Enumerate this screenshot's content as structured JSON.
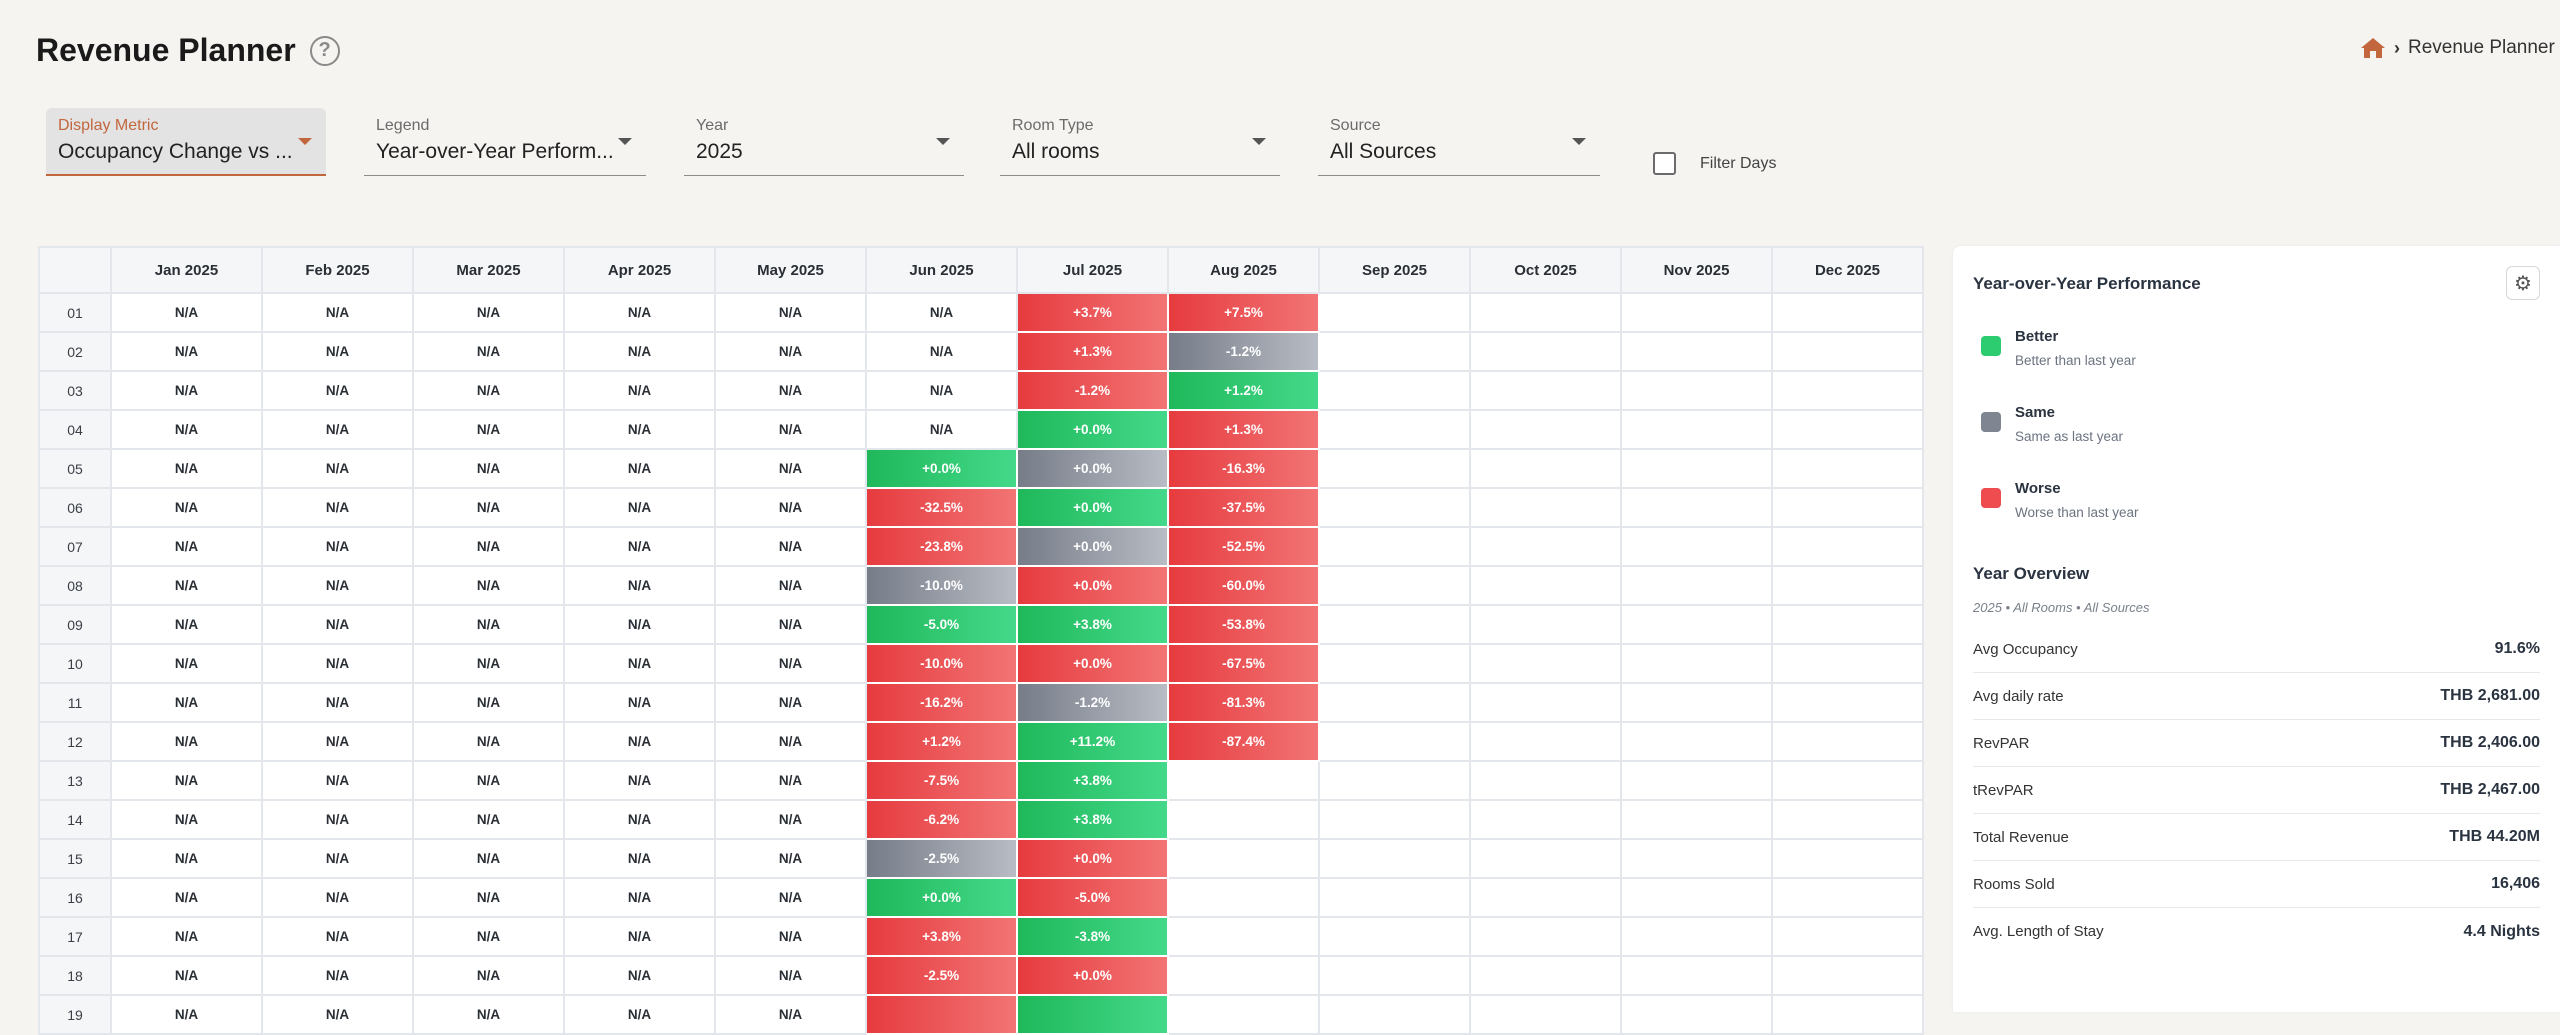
{
  "page": {
    "title": "Revenue Planner",
    "help_glyph": "?"
  },
  "breadcrumb": {
    "separator": "›",
    "current": "Revenue Planner"
  },
  "filters": {
    "display_metric": {
      "label": "Display Metric",
      "value": "Occupancy Change vs ..."
    },
    "legend": {
      "label": "Legend",
      "value": "Year-over-Year Perform..."
    },
    "year": {
      "label": "Year",
      "value": "2025"
    },
    "room_type": {
      "label": "Room Type",
      "value": "All rooms"
    },
    "source": {
      "label": "Source",
      "value": "All Sources"
    },
    "filter_days": {
      "label": "Filter Days",
      "checked": false
    }
  },
  "grid": {
    "months": [
      "Jan 2025",
      "Feb 2025",
      "Mar 2025",
      "Apr 2025",
      "May 2025",
      "Jun 2025",
      "Jul 2025",
      "Aug 2025",
      "Sep 2025",
      "Oct 2025",
      "Nov 2025",
      "Dec 2025"
    ],
    "rows": [
      {
        "day": "01",
        "cells": [
          "N/A",
          "N/A",
          "N/A",
          "N/A",
          "N/A",
          "N/A",
          "w:+3.7%",
          "w:+7.5%",
          "",
          "",
          "",
          ""
        ]
      },
      {
        "day": "02",
        "cells": [
          "N/A",
          "N/A",
          "N/A",
          "N/A",
          "N/A",
          "N/A",
          "w:+1.3%",
          "s:-1.2%",
          "",
          "",
          "",
          ""
        ]
      },
      {
        "day": "03",
        "cells": [
          "N/A",
          "N/A",
          "N/A",
          "N/A",
          "N/A",
          "N/A",
          "w:-1.2%",
          "b:+1.2%",
          "",
          "",
          "",
          ""
        ]
      },
      {
        "day": "04",
        "cells": [
          "N/A",
          "N/A",
          "N/A",
          "N/A",
          "N/A",
          "N/A",
          "b:+0.0%",
          "w:+1.3%",
          "",
          "",
          "",
          ""
        ]
      },
      {
        "day": "05",
        "cells": [
          "N/A",
          "N/A",
          "N/A",
          "N/A",
          "N/A",
          "b:+0.0%",
          "s:+0.0%",
          "w:-16.3%",
          "",
          "",
          "",
          ""
        ]
      },
      {
        "day": "06",
        "cells": [
          "N/A",
          "N/A",
          "N/A",
          "N/A",
          "N/A",
          "w:-32.5%",
          "b:+0.0%",
          "w:-37.5%",
          "",
          "",
          "",
          ""
        ]
      },
      {
        "day": "07",
        "cells": [
          "N/A",
          "N/A",
          "N/A",
          "N/A",
          "N/A",
          "w:-23.8%",
          "s:+0.0%",
          "w:-52.5%",
          "",
          "",
          "",
          ""
        ]
      },
      {
        "day": "08",
        "cells": [
          "N/A",
          "N/A",
          "N/A",
          "N/A",
          "N/A",
          "s:-10.0%",
          "w:+0.0%",
          "w:-60.0%",
          "",
          "",
          "",
          ""
        ]
      },
      {
        "day": "09",
        "cells": [
          "N/A",
          "N/A",
          "N/A",
          "N/A",
          "N/A",
          "b:-5.0%",
          "b:+3.8%",
          "w:-53.8%",
          "",
          "",
          "",
          ""
        ]
      },
      {
        "day": "10",
        "cells": [
          "N/A",
          "N/A",
          "N/A",
          "N/A",
          "N/A",
          "w:-10.0%",
          "w:+0.0%",
          "w:-67.5%",
          "",
          "",
          "",
          ""
        ]
      },
      {
        "day": "11",
        "cells": [
          "N/A",
          "N/A",
          "N/A",
          "N/A",
          "N/A",
          "w:-16.2%",
          "s:-1.2%",
          "w:-81.3%",
          "",
          "",
          "",
          ""
        ]
      },
      {
        "day": "12",
        "cells": [
          "N/A",
          "N/A",
          "N/A",
          "N/A",
          "N/A",
          "w:+1.2%",
          "b:+11.2%",
          "w:-87.4%",
          "",
          "",
          "",
          ""
        ]
      },
      {
        "day": "13",
        "cells": [
          "N/A",
          "N/A",
          "N/A",
          "N/A",
          "N/A",
          "w:-7.5%",
          "b:+3.8%",
          "",
          "",
          "",
          "",
          ""
        ]
      },
      {
        "day": "14",
        "cells": [
          "N/A",
          "N/A",
          "N/A",
          "N/A",
          "N/A",
          "w:-6.2%",
          "b:+3.8%",
          "",
          "",
          "",
          "",
          ""
        ]
      },
      {
        "day": "15",
        "cells": [
          "N/A",
          "N/A",
          "N/A",
          "N/A",
          "N/A",
          "s:-2.5%",
          "w:+0.0%",
          "",
          "",
          "",
          "",
          ""
        ]
      },
      {
        "day": "16",
        "cells": [
          "N/A",
          "N/A",
          "N/A",
          "N/A",
          "N/A",
          "b:+0.0%",
          "w:-5.0%",
          "",
          "",
          "",
          "",
          ""
        ]
      },
      {
        "day": "17",
        "cells": [
          "N/A",
          "N/A",
          "N/A",
          "N/A",
          "N/A",
          "w:+3.8%",
          "b:-3.8%",
          "",
          "",
          "",
          "",
          ""
        ]
      },
      {
        "day": "18",
        "cells": [
          "N/A",
          "N/A",
          "N/A",
          "N/A",
          "N/A",
          "w:-2.5%",
          "w:+0.0%",
          "",
          "",
          "",
          "",
          ""
        ]
      },
      {
        "day": "19",
        "cells": [
          "N/A",
          "N/A",
          "N/A",
          "N/A",
          "N/A",
          "w:",
          "b:",
          "",
          "",
          "",
          "",
          ""
        ]
      }
    ]
  },
  "legend_panel": {
    "title": "Year-over-Year Performance",
    "settings_icon": "gear-icon",
    "items": [
      {
        "name": "Better",
        "desc": "Better than last year",
        "color": "#2ecc71"
      },
      {
        "name": "Same",
        "desc": "Same as last year",
        "color": "#7f8591"
      },
      {
        "name": "Worse",
        "desc": "Worse than last year",
        "color": "#ef4c50"
      }
    ]
  },
  "overview": {
    "title": "Year Overview",
    "subtitle": "2025 • All Rooms • All Sources",
    "stats": [
      {
        "label": "Avg Occupancy",
        "value": "91.6%"
      },
      {
        "label": "Avg daily rate",
        "value": "THB 2,681.00"
      },
      {
        "label": "RevPAR",
        "value": "THB 2,406.00"
      },
      {
        "label": "tRevPAR",
        "value": "THB 2,467.00"
      },
      {
        "label": "Total Revenue",
        "value": "THB 44.20M"
      },
      {
        "label": "Rooms Sold",
        "value": "16,406"
      },
      {
        "label": "Avg. Length of Stay",
        "value": "4.4 Nights"
      }
    ]
  }
}
